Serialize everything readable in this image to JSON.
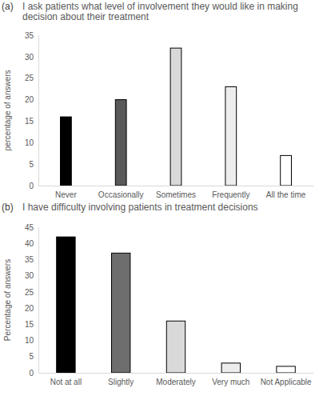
{
  "chart_data": [
    {
      "type": "bar",
      "title": "I ask patients what level of involvement they would like in making decision about their treatment",
      "annotations": [
        "(a)"
      ],
      "y_label": "percentage of answers",
      "categories": [
        "Never",
        "Occasionally",
        "Sometimes",
        "Frequently",
        "All the time"
      ],
      "values": [
        16,
        20,
        32,
        23,
        7
      ],
      "colors": [
        "#000000",
        "#595959",
        "#d9d9d9",
        "#ededed",
        "#ffffff"
      ],
      "ylim": [
        0,
        35
      ],
      "yticks": [
        0,
        5,
        10,
        15,
        20,
        25,
        30,
        35
      ],
      "grid": false
    },
    {
      "type": "bar",
      "title": "I have difficulty involving patients in treatment decisions",
      "annotations": [
        "(b)"
      ],
      "y_label": "Percentage of answers",
      "categories": [
        "Not at all",
        "Slightly",
        "Moderately",
        "Very much",
        "Not Applicable"
      ],
      "values": [
        42,
        37,
        16,
        3,
        2
      ],
      "colors": [
        "#000000",
        "#6e6e6e",
        "#d9d9d9",
        "#ededed",
        "#ffffff"
      ],
      "ylim": [
        0,
        45
      ],
      "yticks": [
        0,
        5,
        10,
        15,
        20,
        25,
        30,
        35,
        40,
        45
      ],
      "grid": false
    }
  ]
}
